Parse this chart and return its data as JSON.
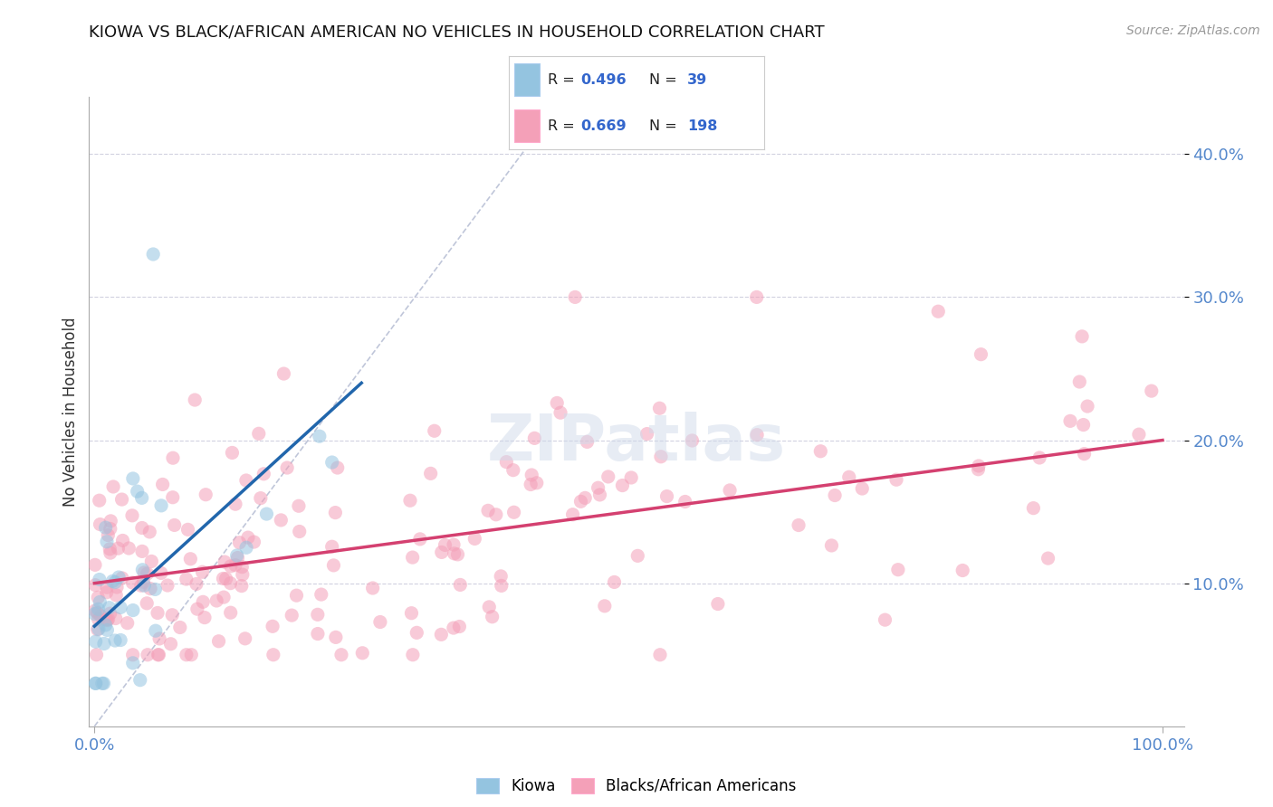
{
  "title": "KIOWA VS BLACK/AFRICAN AMERICAN NO VEHICLES IN HOUSEHOLD CORRELATION CHART",
  "source": "Source: ZipAtlas.com",
  "ylabel": "No Vehicles in Household",
  "color_kiowa": "#94c4e0",
  "color_baa": "#f4a0b8",
  "color_kiowa_line": "#2166ac",
  "color_baa_line": "#d44070",
  "color_diag": "#b0b8d0",
  "background_color": "#ffffff",
  "title_fontsize": 13,
  "legend_label1": "Kiowa",
  "legend_label2": "Blacks/African Americans",
  "dot_size": 120,
  "dot_alpha": 0.55
}
